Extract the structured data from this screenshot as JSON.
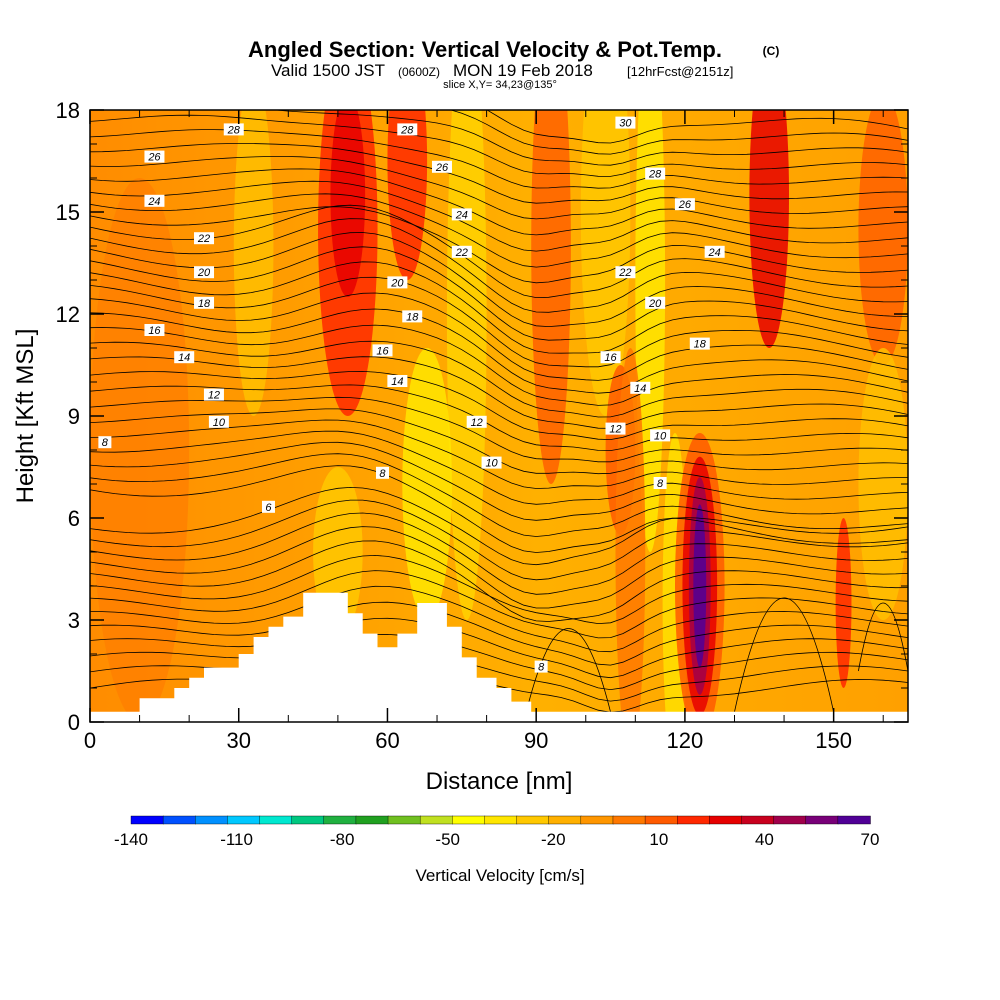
{
  "header": {
    "title": "Angled Section: Vertical Velocity & Pot.Temp.",
    "copyright": "(C)",
    "valid_prefix": "Valid 1500 JST",
    "valid_utc": "(0600Z)",
    "valid_date": "MON 19 Feb 2018",
    "forecast": "[12hrFcst@2151z]",
    "slice": "slice X,Y= 34,23@135°"
  },
  "chart_data": {
    "type": "heatmap",
    "xlabel": "Distance [nm]",
    "ylabel": "Height [Kft MSL]",
    "xlim": [
      0,
      165
    ],
    "ylim": [
      0,
      18
    ],
    "x_ticks": [
      0,
      30,
      60,
      90,
      120,
      150
    ],
    "y_ticks": [
      0,
      3,
      6,
      9,
      12,
      15,
      18
    ],
    "colorbar": {
      "label": "Vertical Velocity [cm/s]",
      "min": -140,
      "max": 70,
      "step": 10,
      "tick_labels": [
        "-140",
        "-110",
        "-80",
        "-50",
        "-20",
        "10",
        "40",
        "70"
      ],
      "colors": [
        "#0000ff",
        "#0050ff",
        "#0090ff",
        "#00c8ff",
        "#00e8d0",
        "#00c880",
        "#20b040",
        "#20a020",
        "#70c020",
        "#c0e020",
        "#ffff00",
        "#ffe600",
        "#ffc800",
        "#ffb000",
        "#ff9600",
        "#ff7800",
        "#ff5a00",
        "#ff2800",
        "#e60000",
        "#c8001e",
        "#a0004b",
        "#780078",
        "#500096"
      ]
    },
    "terrain": [
      [
        0,
        0.3
      ],
      [
        10,
        0.3
      ],
      [
        10,
        0.7
      ],
      [
        17,
        0.7
      ],
      [
        17,
        1.0
      ],
      [
        20,
        1.0
      ],
      [
        20,
        1.3
      ],
      [
        23,
        1.3
      ],
      [
        23,
        1.6
      ],
      [
        30,
        1.6
      ],
      [
        30,
        2.0
      ],
      [
        33,
        2.0
      ],
      [
        33,
        2.5
      ],
      [
        36,
        2.5
      ],
      [
        36,
        2.8
      ],
      [
        39,
        2.8
      ],
      [
        39,
        3.1
      ],
      [
        43,
        3.1
      ],
      [
        43,
        3.8
      ],
      [
        52,
        3.8
      ],
      [
        52,
        3.2
      ],
      [
        55,
        3.2
      ],
      [
        55,
        2.6
      ],
      [
        58,
        2.6
      ],
      [
        58,
        2.2
      ],
      [
        62,
        2.2
      ],
      [
        62,
        2.6
      ],
      [
        66,
        2.6
      ],
      [
        66,
        3.5
      ],
      [
        72,
        3.5
      ],
      [
        72,
        2.8
      ],
      [
        75,
        2.8
      ],
      [
        75,
        1.9
      ],
      [
        78,
        1.9
      ],
      [
        78,
        1.3
      ],
      [
        82,
        1.3
      ],
      [
        82,
        1.0
      ],
      [
        85,
        1.0
      ],
      [
        85,
        0.6
      ],
      [
        89,
        0.6
      ],
      [
        89,
        0.3
      ],
      [
        165,
        0.3
      ]
    ],
    "theta_contours": [
      {
        "value": "30",
        "x": 108,
        "y": 17.6
      },
      {
        "value": "28",
        "x": 29,
        "y": 17.4
      },
      {
        "value": "28",
        "x": 64,
        "y": 17.4
      },
      {
        "value": "28",
        "x": 114,
        "y": 16.1
      },
      {
        "value": "26",
        "x": 13,
        "y": 16.6
      },
      {
        "value": "26",
        "x": 71,
        "y": 16.3
      },
      {
        "value": "26",
        "x": 120,
        "y": 15.2
      },
      {
        "value": "24",
        "x": 13,
        "y": 15.3
      },
      {
        "value": "24",
        "x": 75,
        "y": 14.9
      },
      {
        "value": "24",
        "x": 126,
        "y": 13.8
      },
      {
        "value": "22",
        "x": 23,
        "y": 14.2
      },
      {
        "value": "22",
        "x": 75,
        "y": 13.8
      },
      {
        "value": "22",
        "x": 108,
        "y": 13.2
      },
      {
        "value": "20",
        "x": 23,
        "y": 13.2
      },
      {
        "value": "20",
        "x": 62,
        "y": 12.9
      },
      {
        "value": "20",
        "x": 114,
        "y": 12.3
      },
      {
        "value": "18",
        "x": 23,
        "y": 12.3
      },
      {
        "value": "18",
        "x": 65,
        "y": 11.9
      },
      {
        "value": "18",
        "x": 123,
        "y": 11.1
      },
      {
        "value": "16",
        "x": 13,
        "y": 11.5
      },
      {
        "value": "16",
        "x": 59,
        "y": 10.9
      },
      {
        "value": "16",
        "x": 105,
        "y": 10.7
      },
      {
        "value": "14",
        "x": 19,
        "y": 10.7
      },
      {
        "value": "14",
        "x": 62,
        "y": 10.0
      },
      {
        "value": "14",
        "x": 111,
        "y": 9.8
      },
      {
        "value": "12",
        "x": 25,
        "y": 9.6
      },
      {
        "value": "12",
        "x": 78,
        "y": 8.8
      },
      {
        "value": "12",
        "x": 106,
        "y": 8.6
      },
      {
        "value": "10",
        "x": 26,
        "y": 8.8
      },
      {
        "value": "10",
        "x": 81,
        "y": 7.6
      },
      {
        "value": "10",
        "x": 115,
        "y": 8.4
      },
      {
        "value": "8",
        "x": 3,
        "y": 8.2
      },
      {
        "value": "8",
        "x": 59,
        "y": 7.3
      },
      {
        "value": "8",
        "x": 115,
        "y": 7.0
      },
      {
        "value": "8",
        "x": 91,
        "y": 1.6
      },
      {
        "value": "6",
        "x": 36,
        "y": 6.3
      }
    ]
  }
}
